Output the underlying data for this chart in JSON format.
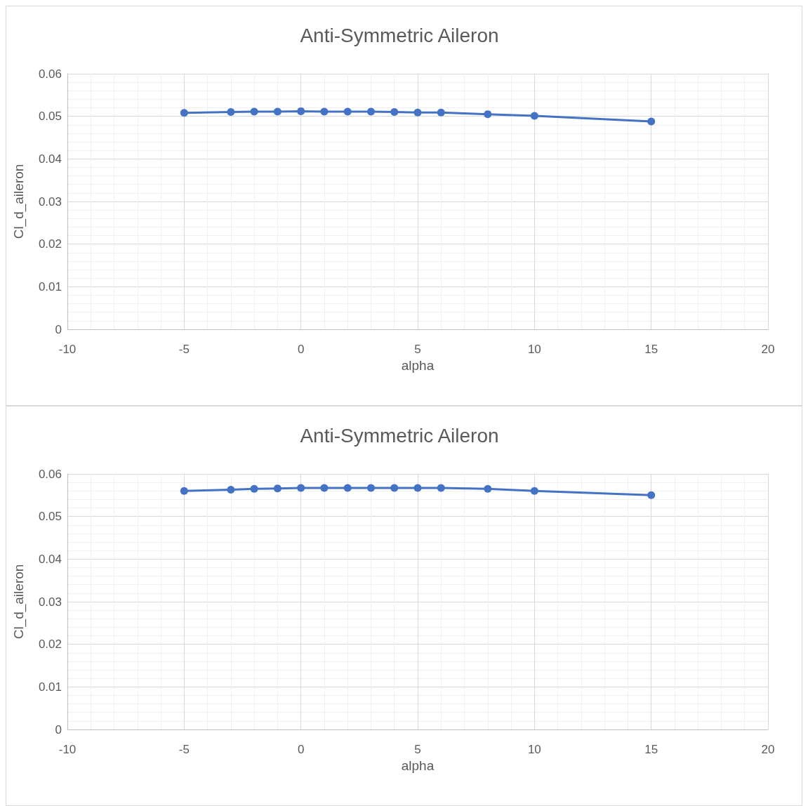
{
  "chart_data": [
    {
      "type": "line",
      "title": "Anti-Symmetric Aileron",
      "xlabel": "alpha",
      "ylabel": "Cl_d_aileron",
      "x": [
        -5,
        -3,
        -2,
        -1,
        0,
        1,
        2,
        3,
        4,
        5,
        6,
        8,
        10,
        15
      ],
      "series": [
        {
          "color": "#4472c4",
          "values": [
            0.0508,
            0.051,
            0.0511,
            0.0511,
            0.0512,
            0.0511,
            0.0511,
            0.0511,
            0.051,
            0.0509,
            0.0509,
            0.0505,
            0.0501,
            0.0488
          ]
        }
      ],
      "xlim": [
        -10,
        20
      ],
      "xticks": [
        -10,
        -5,
        0,
        5,
        10,
        15,
        20
      ],
      "ylim": [
        0,
        0.06
      ],
      "yticks": [
        0,
        0.01,
        0.02,
        0.03,
        0.04,
        0.05,
        0.06
      ],
      "grid": true,
      "marker": "circle",
      "line_style": "solid",
      "legend": false
    },
    {
      "type": "line",
      "title": "Anti-Symmetric Aileron",
      "xlabel": "alpha",
      "ylabel": "Cl_d_aileron",
      "x": [
        -5,
        -3,
        -2,
        -1,
        0,
        1,
        2,
        3,
        4,
        5,
        6,
        8,
        10,
        15
      ],
      "series": [
        {
          "color": "#4472c4",
          "values": [
            0.056,
            0.0563,
            0.0565,
            0.0566,
            0.0567,
            0.0567,
            0.0567,
            0.0567,
            0.0567,
            0.0567,
            0.0567,
            0.0565,
            0.056,
            0.055
          ]
        }
      ],
      "xlim": [
        -10,
        20
      ],
      "xticks": [
        -10,
        -5,
        0,
        5,
        10,
        15,
        20
      ],
      "ylim": [
        0,
        0.06
      ],
      "yticks": [
        0,
        0.01,
        0.02,
        0.03,
        0.04,
        0.05,
        0.06
      ],
      "grid": true,
      "marker": "circle",
      "line_style": "solid",
      "legend": false
    }
  ]
}
